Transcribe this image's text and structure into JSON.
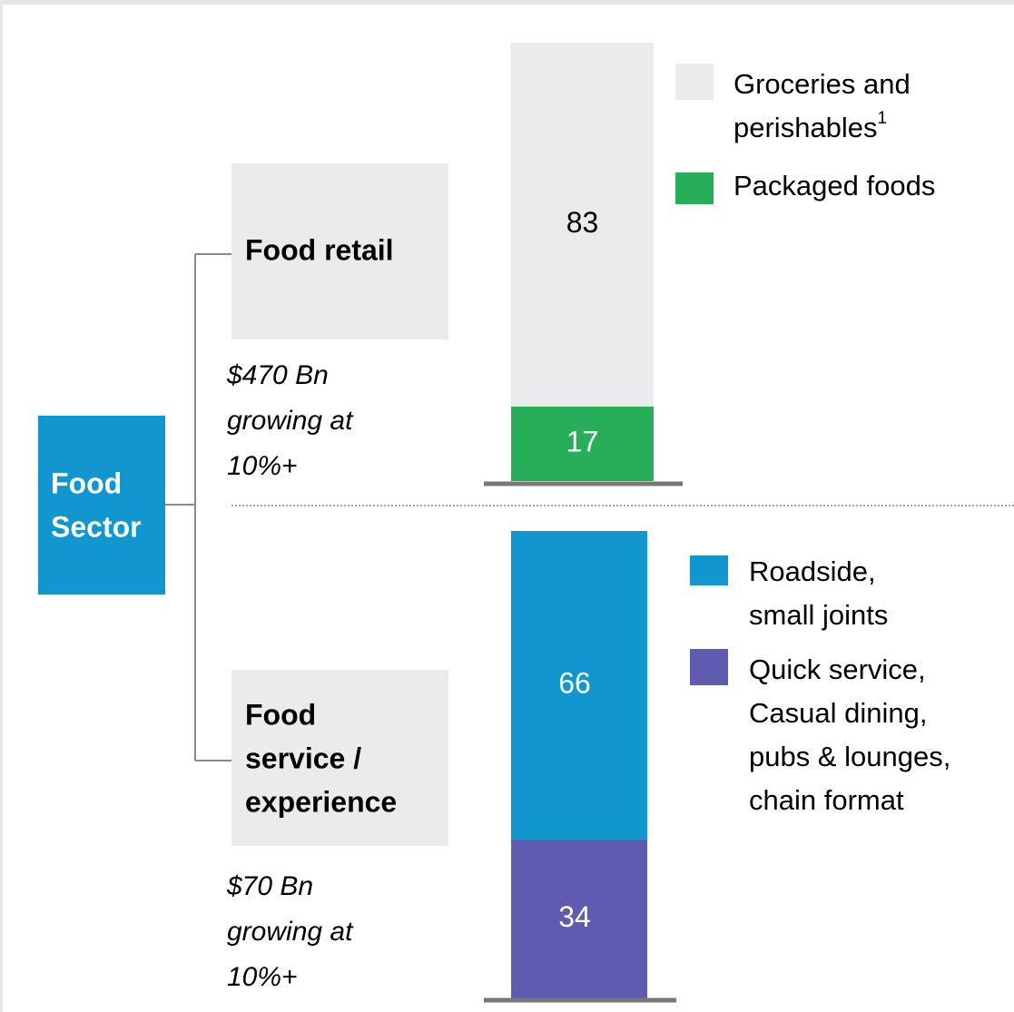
{
  "root": {
    "label": [
      "Food",
      "Sector"
    ]
  },
  "branches": [
    {
      "label": [
        "Food retail"
      ],
      "size": [
        "$470 Bn",
        "growing at",
        "10%+"
      ],
      "chart_data": {
        "type": "bar",
        "ylim": [
          0,
          100
        ],
        "series": [
          {
            "name": [
              "Groceries and",
              "perishables"
            ],
            "footnote": "1",
            "color": "#ebebed",
            "values": [
              83
            ]
          },
          {
            "name": [
              "Packaged foods"
            ],
            "color": "#27ae58",
            "values": [
              17
            ]
          }
        ]
      }
    },
    {
      "label": [
        "Food",
        "service /",
        "experience"
      ],
      "size": [
        "$70 Bn",
        "growing at",
        "10%+"
      ],
      "chart_data": {
        "type": "bar",
        "ylim": [
          0,
          100
        ],
        "series": [
          {
            "name": [
              "Roadside,",
              "small joints"
            ],
            "color": "#1296cf",
            "values": [
              66
            ]
          },
          {
            "name": [
              "Quick service,",
              "Casual dining,",
              "pubs & lounges,",
              "chain format"
            ],
            "color": "#5e5bb0",
            "values": [
              34
            ]
          }
        ]
      }
    }
  ]
}
